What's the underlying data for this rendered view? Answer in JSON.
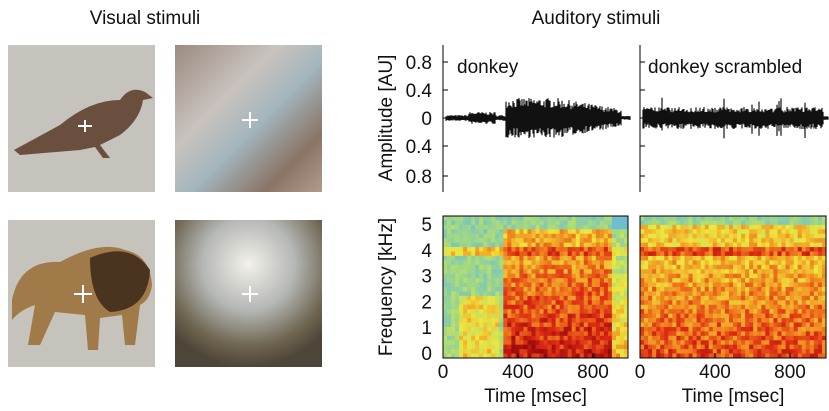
{
  "visual": {
    "title": "Visual stimuli"
  },
  "auditory": {
    "title": "Auditory stimuli",
    "amplitude_axis": {
      "label": "Amplitude [AU]",
      "ticks": [
        "0.8",
        "0.4",
        "0",
        "0.4",
        "0.8"
      ]
    },
    "frequency_axis": {
      "label": "Frequency [kHz]",
      "ticks": [
        "5",
        "4",
        "3",
        "2",
        "1",
        "0"
      ]
    },
    "time_axis": {
      "label": "Time [msec]",
      "ticks": [
        "0",
        "400",
        "800"
      ]
    },
    "panels": [
      {
        "label": "donkey"
      },
      {
        "label": "donkey scrambled"
      }
    ]
  }
}
